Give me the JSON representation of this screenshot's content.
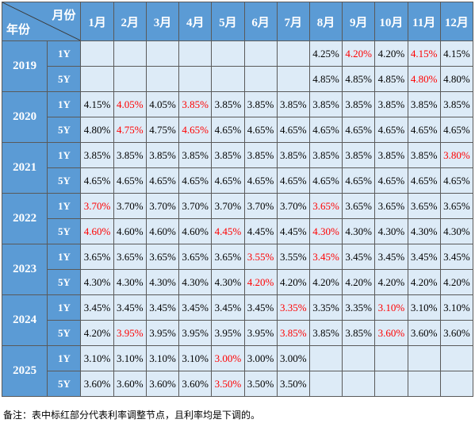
{
  "table": {
    "corner_month": "月份",
    "corner_year": "年份",
    "months": [
      "1月",
      "2月",
      "3月",
      "4月",
      "5月",
      "6月",
      "7月",
      "8月",
      "9月",
      "10月",
      "11月",
      "12月"
    ],
    "rows": [
      {
        "year": "2019",
        "terms": [
          {
            "term": "1Y",
            "values": [
              "",
              "",
              "",
              "",
              "",
              "",
              "",
              "4.25%",
              "4.20%",
              "4.20%",
              "4.15%",
              "4.15%"
            ],
            "highlight": [
              8,
              10
            ]
          },
          {
            "term": "5Y",
            "values": [
              "",
              "",
              "",
              "",
              "",
              "",
              "",
              "4.85%",
              "4.85%",
              "4.85%",
              "4.80%",
              "4.80%"
            ],
            "highlight": [
              10
            ]
          }
        ]
      },
      {
        "year": "2020",
        "terms": [
          {
            "term": "1Y",
            "values": [
              "4.15%",
              "4.05%",
              "4.05%",
              "3.85%",
              "3.85%",
              "3.85%",
              "3.85%",
              "3.85%",
              "3.85%",
              "3.85%",
              "3.85%",
              "3.85%"
            ],
            "highlight": [
              1,
              3
            ]
          },
          {
            "term": "5Y",
            "values": [
              "4.80%",
              "4.75%",
              "4.75%",
              "4.65%",
              "4.65%",
              "4.65%",
              "4.65%",
              "4.65%",
              "4.65%",
              "4.65%",
              "4.65%",
              "4.65%"
            ],
            "highlight": [
              1,
              3
            ]
          }
        ]
      },
      {
        "year": "2021",
        "terms": [
          {
            "term": "1Y",
            "values": [
              "3.85%",
              "3.85%",
              "3.85%",
              "3.85%",
              "3.85%",
              "3.85%",
              "3.85%",
              "3.85%",
              "3.85%",
              "3.85%",
              "3.85%",
              "3.80%"
            ],
            "highlight": [
              11
            ]
          },
          {
            "term": "5Y",
            "values": [
              "4.65%",
              "4.65%",
              "4.65%",
              "4.65%",
              "4.65%",
              "4.65%",
              "4.65%",
              "4.65%",
              "4.65%",
              "4.65%",
              "4.65%",
              "4.65%"
            ],
            "highlight": []
          }
        ]
      },
      {
        "year": "2022",
        "terms": [
          {
            "term": "1Y",
            "values": [
              "3.70%",
              "3.70%",
              "3.70%",
              "3.70%",
              "3.70%",
              "3.70%",
              "3.70%",
              "3.65%",
              "3.65%",
              "3.65%",
              "3.65%",
              "3.65%"
            ],
            "highlight": [
              0,
              7
            ]
          },
          {
            "term": "5Y",
            "values": [
              "4.60%",
              "4.60%",
              "4.60%",
              "4.60%",
              "4.45%",
              "4.45%",
              "4.45%",
              "4.30%",
              "4.30%",
              "4.30%",
              "4.30%",
              "4.30%"
            ],
            "highlight": [
              0,
              4,
              7
            ]
          }
        ]
      },
      {
        "year": "2023",
        "terms": [
          {
            "term": "1Y",
            "values": [
              "3.65%",
              "3.65%",
              "3.65%",
              "3.65%",
              "3.65%",
              "3.55%",
              "3.55%",
              "3.45%",
              "3.45%",
              "3.45%",
              "3.45%",
              "3.45%"
            ],
            "highlight": [
              5,
              7
            ]
          },
          {
            "term": "5Y",
            "values": [
              "4.30%",
              "4.30%",
              "4.30%",
              "4.30%",
              "4.30%",
              "4.20%",
              "4.20%",
              "4.20%",
              "4.20%",
              "4.20%",
              "4.20%",
              "4.20%"
            ],
            "highlight": [
              5
            ]
          }
        ]
      },
      {
        "year": "2024",
        "terms": [
          {
            "term": "1Y",
            "values": [
              "3.45%",
              "3.45%",
              "3.45%",
              "3.45%",
              "3.45%",
              "3.45%",
              "3.35%",
              "3.35%",
              "3.35%",
              "3.10%",
              "3.10%",
              "3.10%"
            ],
            "highlight": [
              6,
              9
            ]
          },
          {
            "term": "5Y",
            "values": [
              "4.20%",
              "3.95%",
              "3.95%",
              "3.95%",
              "3.95%",
              "3.95%",
              "3.85%",
              "3.85%",
              "3.85%",
              "3.60%",
              "3.60%",
              "3.60%"
            ],
            "highlight": [
              1,
              6,
              9
            ]
          }
        ]
      },
      {
        "year": "2025",
        "terms": [
          {
            "term": "1Y",
            "values": [
              "3.10%",
              "3.10%",
              "3.10%",
              "3.10%",
              "3.00%",
              "3.00%",
              "3.00%",
              "",
              "",
              "",
              "",
              ""
            ],
            "highlight": [
              4
            ]
          },
          {
            "term": "5Y",
            "values": [
              "3.60%",
              "3.60%",
              "3.60%",
              "3.60%",
              "3.50%",
              "3.50%",
              "3.50%",
              "",
              "",
              "",
              "",
              ""
            ],
            "highlight": [
              4
            ]
          }
        ]
      }
    ]
  },
  "note": "备注：表中标红部分代表利率调整节点，且利率均是下调的。"
}
